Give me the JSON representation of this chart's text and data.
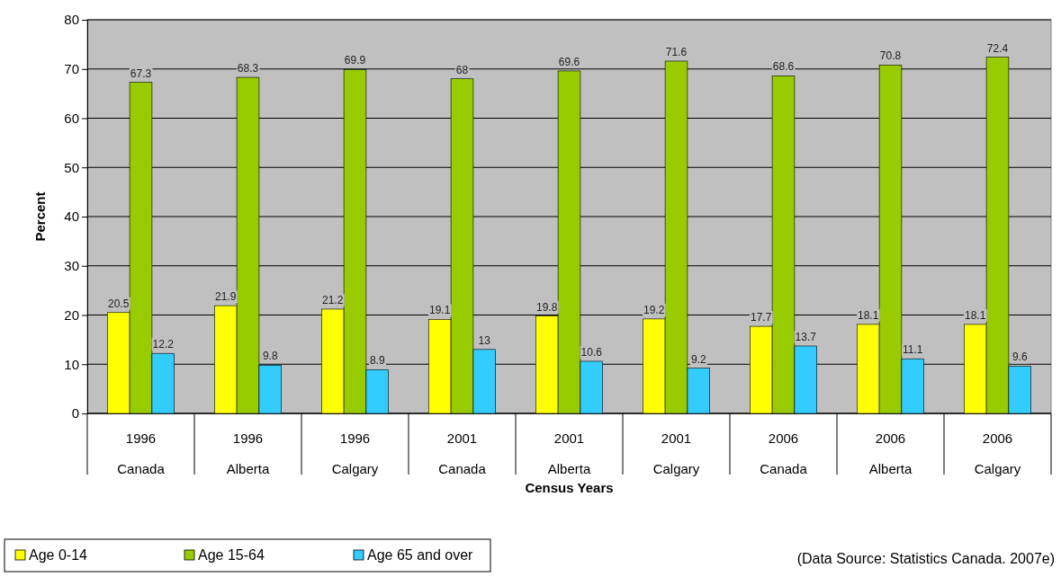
{
  "chart_data": {
    "type": "bar",
    "xlabel": "Census Years",
    "ylabel": "Percent",
    "categories": [
      "1996\nCanada",
      "1996\nAlberta",
      "1996\nCalgary",
      "2001\nCanada",
      "2001\nAlberta",
      "2001\nCalgary",
      "2006\nCanada",
      "2006\nAlberta",
      "2006\nCalgary"
    ],
    "series": [
      {
        "name": "Age 0-14",
        "color": "#ffff00",
        "values": [
          20.5,
          21.9,
          21.2,
          19.1,
          19.8,
          19.2,
          17.7,
          18.1,
          18.1
        ]
      },
      {
        "name": "Age 15-64",
        "color": "#99cc00",
        "values": [
          67.3,
          68.3,
          69.9,
          68,
          69.6,
          71.6,
          68.6,
          70.8,
          72.4
        ]
      },
      {
        "name": "Age 65 and over",
        "color": "#33ccff",
        "values": [
          12.2,
          9.8,
          8.9,
          13,
          10.6,
          9.2,
          13.7,
          11.1,
          9.6
        ]
      }
    ],
    "ylim": [
      0,
      80
    ],
    "yticks": [
      0,
      10,
      20,
      30,
      40,
      50,
      60,
      70,
      80
    ],
    "grid": "y",
    "data_labels": true,
    "legend": "bottom",
    "annotations": [
      "(Data Source: Statistics Canada. 2007e)"
    ]
  }
}
